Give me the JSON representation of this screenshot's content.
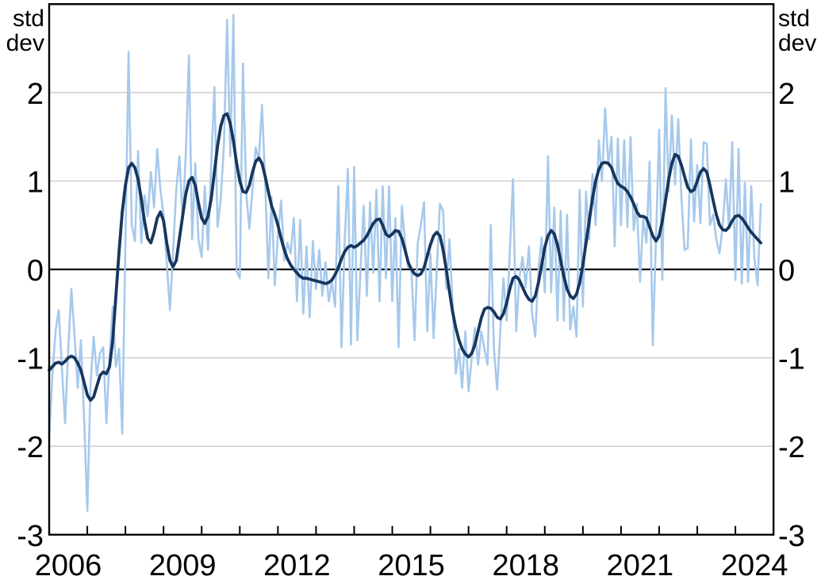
{
  "figure": {
    "background_color": "#ffffff",
    "unit_label_lines": [
      "std",
      "dev"
    ],
    "colors": {
      "monthly_line": "#a6c9ec",
      "trend_line": "#17365d",
      "gridline": "#c9c9c9",
      "zero_line": "#000000",
      "axis_frame": "#000000",
      "tick_text": "#000000"
    },
    "y_axis": {
      "tick_labels": [
        "2",
        "1",
        "0",
        "-1",
        "-2",
        "-3"
      ],
      "tick_values": [
        2,
        1,
        0,
        -1,
        -2,
        -3
      ],
      "min": -3,
      "max": 3,
      "shown_on_both_sides": true
    },
    "x_axis": {
      "label_years": [
        2006,
        2009,
        2012,
        2015,
        2018,
        2021,
        2024
      ],
      "tick_years": [
        2007,
        2008,
        2009,
        2010,
        2011,
        2012,
        2013,
        2014,
        2015,
        2016,
        2017,
        2018,
        2019,
        2020,
        2021,
        2022,
        2023,
        2024
      ],
      "axis_start": 2006.0,
      "axis_end": 2025.0
    }
  },
  "chart_data": {
    "type": "line",
    "title": "",
    "xlabel": "",
    "ylabel": "std dev",
    "xlim": [
      2006.0,
      2025.0
    ],
    "ylim": [
      -3,
      3
    ],
    "grid": true,
    "legend": false,
    "x_start": 2006.0,
    "x_step_years": 0.0833333,
    "series": [
      {
        "name": "monthly-indicator",
        "color": "#a6c9ec",
        "stroke_width": 2.6,
        "values": [
          -1.9,
          -1.2,
          -0.7,
          -0.46,
          -1.1,
          -1.74,
          -0.9,
          -0.22,
          -0.75,
          -1.34,
          -0.8,
          -1.7,
          -2.73,
          -1.3,
          -0.76,
          -1.2,
          -0.95,
          -0.88,
          -1.74,
          -1.0,
          -0.42,
          -1.1,
          -0.9,
          -1.86,
          0.3,
          2.46,
          0.5,
          0.32,
          1.34,
          0.3,
          0.84,
          0.6,
          1.1,
          0.7,
          1.36,
          0.9,
          0.62,
          0.08,
          -0.46,
          0.2,
          0.9,
          1.28,
          0.56,
          1.3,
          2.42,
          0.34,
          1.2,
          0.34,
          0.14,
          0.94,
          0.22,
          1.2,
          2.06,
          0.48,
          0.8,
          1.4,
          2.82,
          1.28,
          2.88,
          -0.02,
          -0.1,
          2.33,
          0.88,
          0.46,
          0.9,
          1.38,
          1.24,
          1.86,
          1.0,
          -0.1,
          0.82,
          -0.18,
          0.4,
          0.78,
          0.1,
          0.3,
          0.18,
          0.58,
          -0.36,
          0.56,
          -0.5,
          0.26,
          -0.54,
          0.32,
          -0.22,
          0.22,
          -0.3,
          0.08,
          -0.36,
          -0.14,
          -0.42,
          0.94,
          -0.88,
          0.3,
          1.14,
          -0.85,
          1.16,
          -0.8,
          0.0,
          0.72,
          -0.3,
          0.76,
          -0.04,
          0.9,
          -0.36,
          0.94,
          -0.1,
          0.94,
          -0.36,
          0.58,
          -0.88,
          0.72,
          0.3,
          0.02,
          0.02,
          -0.8,
          0.3,
          0.5,
          0.76,
          -0.7,
          0.18,
          -0.78,
          0.0,
          0.74,
          0.66,
          -0.22,
          0.34,
          -0.4,
          -1.18,
          -0.9,
          -1.34,
          -0.7,
          -1.38,
          -1.0,
          -0.66,
          -1.08,
          -0.7,
          -0.9,
          -1.08,
          0.5,
          -0.9,
          -1.36,
          -0.7,
          -0.1,
          -0.58,
          0.2,
          1.02,
          -0.7,
          -0.1,
          0.14,
          -0.2,
          0.26,
          -0.5,
          -0.76,
          0.0,
          0.36,
          -0.26,
          1.28,
          -0.26,
          0.7,
          -0.58,
          0.66,
          -0.58,
          0.62,
          -0.68,
          -0.42,
          -0.76,
          0.9,
          -0.42,
          0.88,
          0.34,
          1.08,
          0.5,
          1.46,
          1.0,
          1.82,
          1.18,
          1.5,
          0.26,
          1.48,
          0.5,
          1.46,
          0.48,
          1.5,
          0.44,
          0.74,
          -0.14,
          0.58,
          0.3,
          1.22,
          -0.86,
          0.35,
          1.58,
          -0.12,
          2.05,
          0.88,
          1.74,
          0.96,
          1.7,
          0.82,
          0.22,
          0.24,
          1.47,
          0.54,
          1.18,
          0.52,
          1.44,
          1.42,
          0.5,
          0.62,
          0.34,
          0.18,
          0.5,
          1.02,
          0.46,
          1.44,
          -0.12,
          1.36,
          -0.16,
          0.98,
          -0.14,
          0.94,
          0.12,
          -0.18,
          0.74
        ]
      },
      {
        "name": "smoothed-trend",
        "color": "#17365d",
        "stroke_width": 3.8,
        "values": [
          -1.14,
          -1.1,
          -1.06,
          -1.05,
          -1.07,
          -1.04,
          -1.0,
          -0.98,
          -1.0,
          -1.06,
          -1.14,
          -1.28,
          -1.42,
          -1.48,
          -1.44,
          -1.32,
          -1.2,
          -1.16,
          -1.18,
          -1.1,
          -0.8,
          -0.3,
          0.2,
          0.65,
          0.95,
          1.15,
          1.2,
          1.15,
          1.02,
          0.8,
          0.55,
          0.35,
          0.3,
          0.42,
          0.58,
          0.65,
          0.55,
          0.3,
          0.1,
          0.03,
          0.1,
          0.35,
          0.6,
          0.85,
          1.0,
          1.04,
          0.95,
          0.75,
          0.58,
          0.52,
          0.6,
          0.8,
          1.1,
          1.4,
          1.62,
          1.74,
          1.76,
          1.65,
          1.45,
          1.2,
          1.0,
          0.88,
          0.87,
          0.95,
          1.1,
          1.22,
          1.26,
          1.2,
          1.05,
          0.88,
          0.72,
          0.62,
          0.5,
          0.35,
          0.22,
          0.12,
          0.05,
          0.0,
          -0.04,
          -0.08,
          -0.1,
          -0.1,
          -0.11,
          -0.12,
          -0.13,
          -0.14,
          -0.15,
          -0.16,
          -0.15,
          -0.12,
          -0.06,
          0.02,
          0.12,
          0.2,
          0.25,
          0.27,
          0.25,
          0.27,
          0.3,
          0.33,
          0.38,
          0.45,
          0.52,
          0.56,
          0.57,
          0.5,
          0.4,
          0.37,
          0.4,
          0.44,
          0.43,
          0.35,
          0.22,
          0.08,
          0.0,
          -0.05,
          -0.07,
          -0.05,
          0.02,
          0.15,
          0.28,
          0.38,
          0.42,
          0.38,
          0.22,
          0.0,
          -0.25,
          -0.48,
          -0.66,
          -0.8,
          -0.9,
          -0.96,
          -0.99,
          -0.95,
          -0.85,
          -0.7,
          -0.55,
          -0.45,
          -0.43,
          -0.44,
          -0.48,
          -0.54,
          -0.56,
          -0.5,
          -0.38,
          -0.22,
          -0.1,
          -0.08,
          -0.12,
          -0.2,
          -0.28,
          -0.34,
          -0.36,
          -0.3,
          -0.15,
          0.05,
          0.25,
          0.38,
          0.44,
          0.4,
          0.28,
          0.1,
          -0.08,
          -0.22,
          -0.3,
          -0.33,
          -0.28,
          -0.15,
          0.05,
          0.3,
          0.55,
          0.8,
          1.0,
          1.13,
          1.2,
          1.21,
          1.2,
          1.15,
          1.05,
          0.97,
          0.94,
          0.92,
          0.88,
          0.82,
          0.74,
          0.65,
          0.6,
          0.6,
          0.58,
          0.48,
          0.38,
          0.32,
          0.38,
          0.55,
          0.78,
          1.02,
          1.2,
          1.3,
          1.28,
          1.18,
          1.05,
          0.93,
          0.88,
          0.9,
          1.0,
          1.1,
          1.14,
          1.1,
          0.95,
          0.78,
          0.62,
          0.5,
          0.45,
          0.44,
          0.48,
          0.55,
          0.6,
          0.61,
          0.58,
          0.53,
          0.47,
          0.42,
          0.38,
          0.34,
          0.3
        ]
      }
    ]
  }
}
